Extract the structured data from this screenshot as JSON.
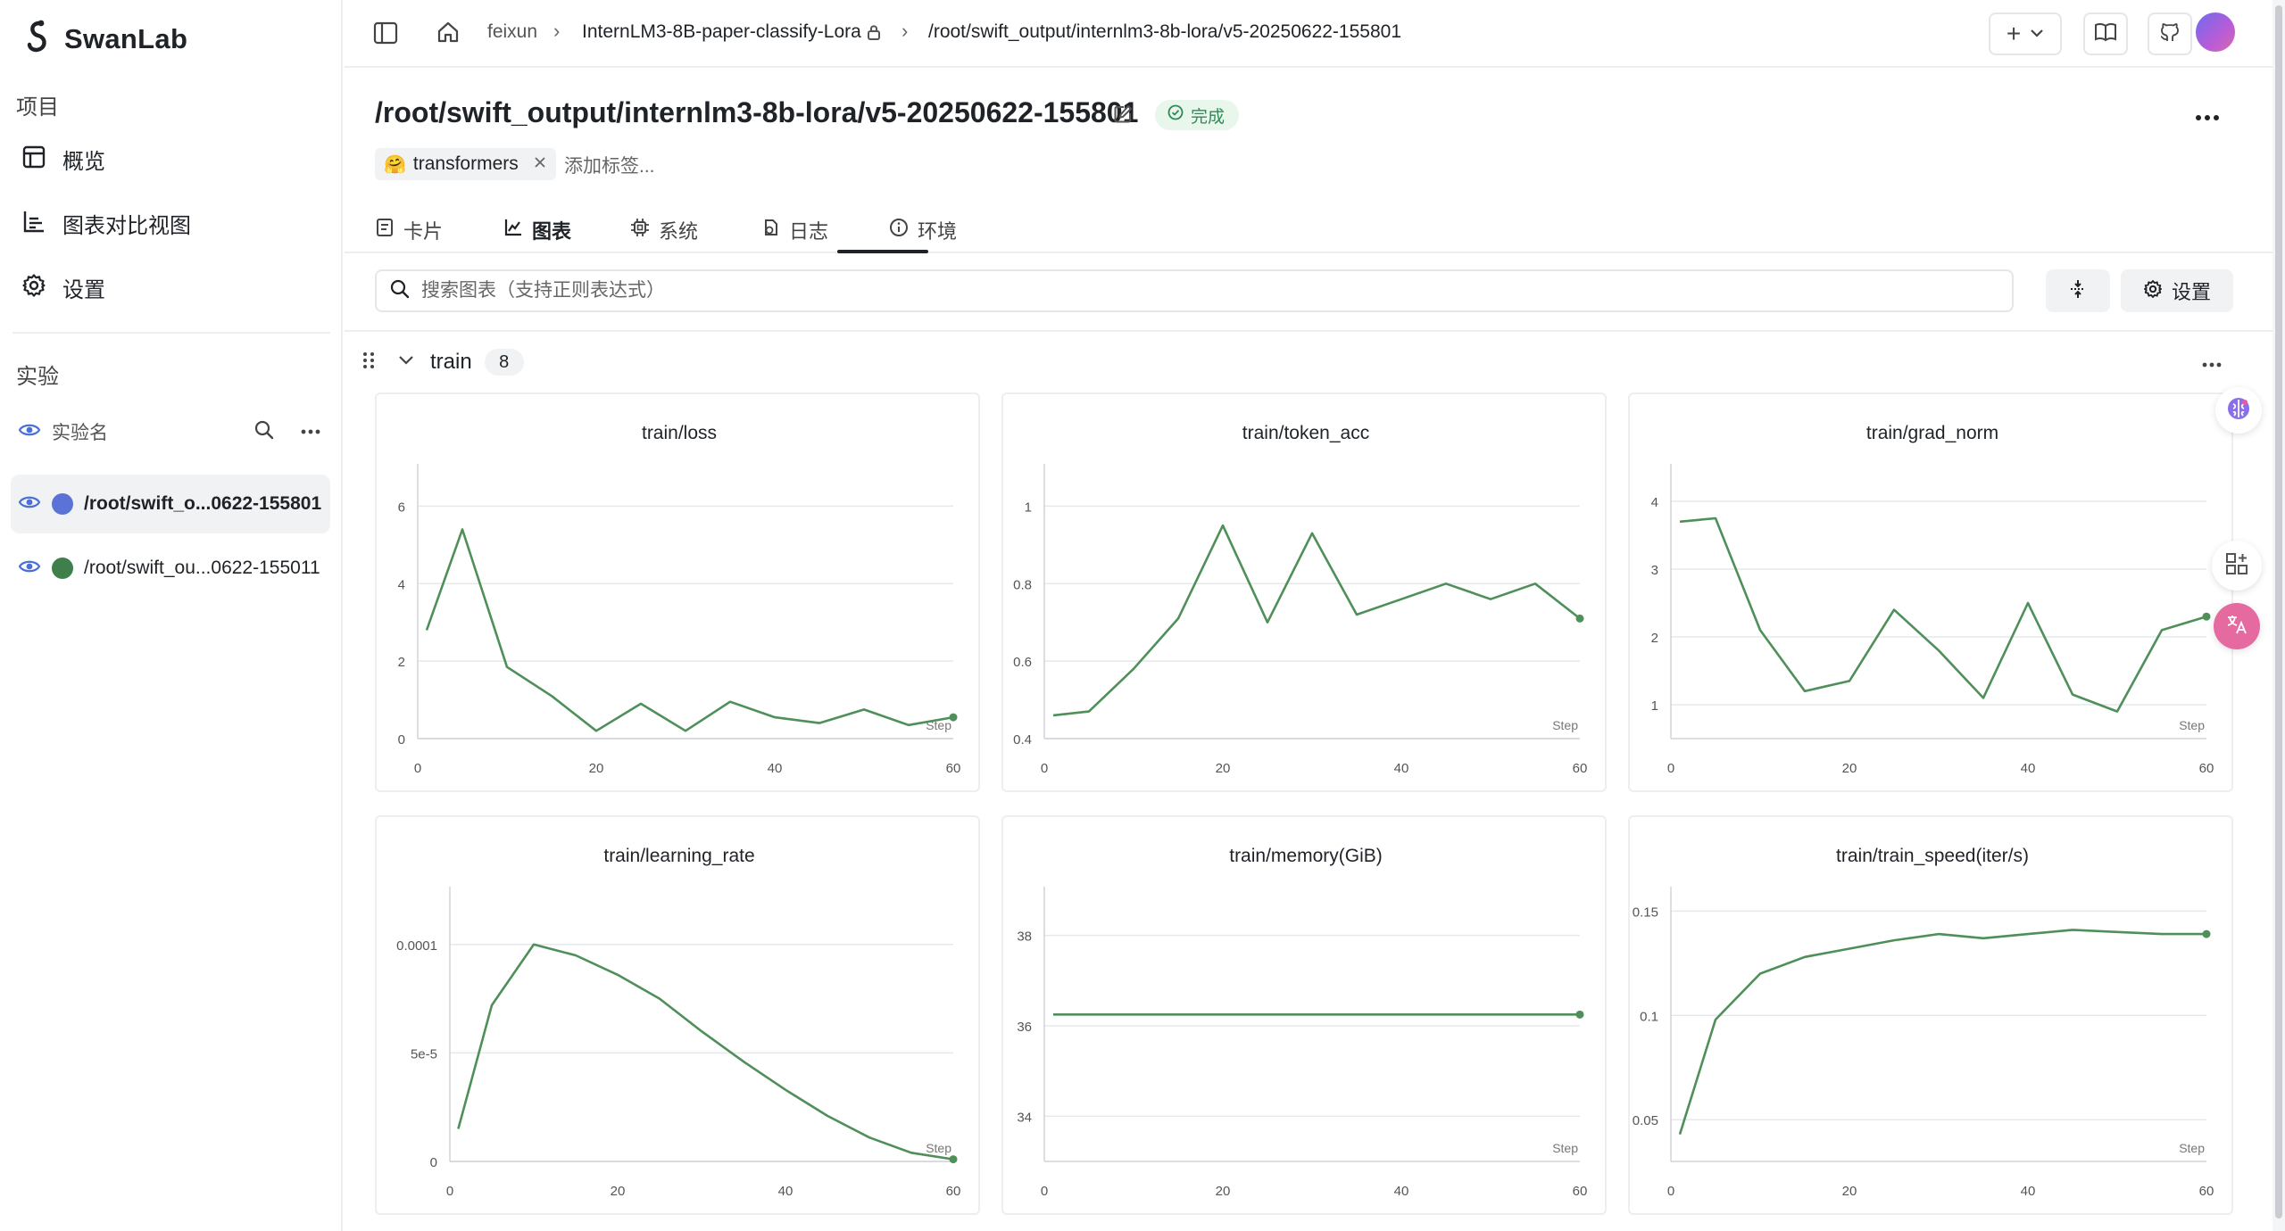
{
  "app": {
    "name": "SwanLab"
  },
  "sidebar": {
    "project_section": "项目",
    "items": [
      {
        "label": "概览",
        "icon": "table-icon"
      },
      {
        "label": "图表对比视图",
        "icon": "chart-icon"
      },
      {
        "label": "设置",
        "icon": "gear-icon"
      }
    ],
    "experiments_section": "实验",
    "experiment_search_placeholder": "实验名",
    "experiments": [
      {
        "name": "/root/swift_o...0622-155801",
        "color": "#5b73d6",
        "active": true
      },
      {
        "name": "/root/swift_ou...0622-155011",
        "color": "#3f7f4c",
        "active": false
      }
    ]
  },
  "header": {
    "breadcrumb": [
      "feixun",
      "InternLM3-8B-paper-classify-Lora",
      "/root/swift_output/internlm3-8b-lora/v5-20250622-155801"
    ],
    "add_label": "+"
  },
  "run": {
    "title": "/root/swift_output/internlm3-8b-lora/v5-20250622-155801",
    "status": "完成",
    "tag_emoji": "🤗",
    "tag": "transformers",
    "add_tag_placeholder": "添加标签..."
  },
  "tabs": [
    {
      "label": "卡片",
      "icon": "card-icon"
    },
    {
      "label": "图表",
      "icon": "line-chart-icon"
    },
    {
      "label": "系统",
      "icon": "cpu-icon"
    },
    {
      "label": "日志",
      "icon": "log-icon"
    },
    {
      "label": "环境",
      "icon": "info-icon"
    }
  ],
  "search": {
    "placeholder": "搜索图表（支持正则表达式）"
  },
  "toolbar": {
    "settings_label": "设置"
  },
  "group": {
    "name": "train",
    "count": "8"
  },
  "colors": {
    "series": "#4f8f5a",
    "accent": "#1f2328",
    "status": "#2e8b57"
  },
  "chart_data": [
    {
      "title": "train/loss",
      "type": "line",
      "xlabel": "Step",
      "xlim": [
        0,
        60
      ],
      "ylim": [
        0,
        7
      ],
      "xticks": [
        0,
        20,
        40,
        60
      ],
      "yticks": [
        0,
        2,
        4,
        6
      ],
      "yticklabels": [
        "0",
        "2",
        "4",
        "6"
      ],
      "x": [
        1,
        5,
        10,
        15,
        20,
        25,
        30,
        35,
        40,
        45,
        50,
        55,
        60
      ],
      "y": [
        2.8,
        5.4,
        1.85,
        1.1,
        0.2,
        0.9,
        0.2,
        0.95,
        0.55,
        0.4,
        0.75,
        0.35,
        0.55
      ]
    },
    {
      "title": "train/token_acc",
      "type": "line",
      "xlabel": "Step",
      "xlim": [
        0,
        60
      ],
      "ylim": [
        0.4,
        1.1
      ],
      "xticks": [
        0,
        20,
        40,
        60
      ],
      "yticks": [
        0.4,
        0.6,
        0.8,
        1
      ],
      "yticklabels": [
        "0.4",
        "0.6",
        "0.8",
        "1"
      ],
      "x": [
        1,
        5,
        10,
        15,
        20,
        25,
        30,
        35,
        40,
        45,
        50,
        55,
        60
      ],
      "y": [
        0.46,
        0.47,
        0.58,
        0.71,
        0.95,
        0.7,
        0.93,
        0.72,
        0.76,
        0.8,
        0.76,
        0.8,
        0.71
      ]
    },
    {
      "title": "train/grad_norm",
      "type": "line",
      "xlabel": "Step",
      "xlim": [
        0,
        60
      ],
      "ylim": [
        0.5,
        4.5
      ],
      "xticks": [
        0,
        20,
        40,
        60
      ],
      "yticks": [
        1,
        2,
        3,
        4
      ],
      "yticklabels": [
        "1",
        "2",
        "3",
        "4"
      ],
      "x": [
        1,
        5,
        10,
        15,
        20,
        25,
        30,
        35,
        40,
        45,
        50,
        55,
        60
      ],
      "y": [
        3.7,
        3.75,
        2.1,
        1.2,
        1.35,
        2.4,
        1.8,
        1.1,
        2.5,
        1.15,
        0.9,
        2.1,
        2.3
      ]
    },
    {
      "title": "train/learning_rate",
      "type": "line",
      "xlabel": "Step",
      "xlim": [
        0,
        60
      ],
      "ylim": [
        0,
        0.000125
      ],
      "xticks": [
        0,
        20,
        40,
        60
      ],
      "yticks": [
        0,
        5e-05,
        0.0001
      ],
      "yticklabels": [
        "0",
        "5e-5",
        "0.0001"
      ],
      "x": [
        1,
        5,
        10,
        15,
        20,
        25,
        30,
        35,
        40,
        45,
        50,
        55,
        60
      ],
      "y": [
        1.5e-05,
        7.2e-05,
        0.0001,
        9.5e-05,
        8.6e-05,
        7.5e-05,
        6e-05,
        4.6e-05,
        3.3e-05,
        2.1e-05,
        1.1e-05,
        4e-06,
        1e-06
      ]
    },
    {
      "title": "train/memory(GiB)",
      "type": "line",
      "xlabel": "Step",
      "xlim": [
        0,
        60
      ],
      "ylim": [
        33,
        39
      ],
      "xticks": [
        0,
        20,
        40,
        60
      ],
      "yticks": [
        34,
        36,
        38
      ],
      "yticklabels": [
        "34",
        "36",
        "38"
      ],
      "x": [
        1,
        60
      ],
      "y": [
        36.25,
        36.25
      ]
    },
    {
      "title": "train/train_speed(iter/s)",
      "type": "line",
      "xlabel": "Step",
      "xlim": [
        0,
        60
      ],
      "ylim": [
        0.03,
        0.16
      ],
      "xticks": [
        0,
        20,
        40,
        60
      ],
      "yticks": [
        0.05,
        0.1,
        0.15
      ],
      "yticklabels": [
        "0.05",
        "0.1",
        "0.15"
      ],
      "x": [
        1,
        5,
        10,
        15,
        20,
        25,
        30,
        35,
        40,
        45,
        50,
        55,
        60
      ],
      "y": [
        0.043,
        0.098,
        0.12,
        0.128,
        0.132,
        0.136,
        0.139,
        0.137,
        0.139,
        0.141,
        0.14,
        0.139,
        0.139
      ]
    }
  ]
}
